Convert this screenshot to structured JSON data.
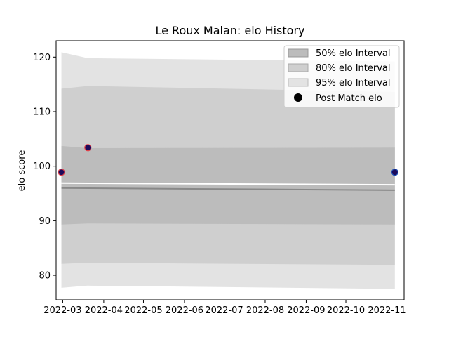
{
  "chart_data": {
    "type": "area",
    "title": "Le Roux Malan: elo History",
    "xlabel": "",
    "ylabel": "elo score",
    "x_ticks": [
      "2022-03",
      "2022-04",
      "2022-05",
      "2022-06",
      "2022-07",
      "2022-08",
      "2022-09",
      "2022-10",
      "2022-11"
    ],
    "x_tick_days": [
      0,
      31,
      61,
      92,
      122,
      153,
      184,
      214,
      245
    ],
    "x_range_days": [
      -5,
      258
    ],
    "ylim": [
      75.5,
      123
    ],
    "y_ticks": [
      80,
      90,
      100,
      110,
      120
    ],
    "legend_position": "top-right",
    "band_days": [
      -1,
      19,
      251
    ],
    "bands": [
      {
        "name": "95% elo Interval",
        "color": "#e3e3e3",
        "upper": [
          120.9,
          119.8,
          119.2
        ],
        "lower": [
          77.7,
          78.1,
          77.5
        ]
      },
      {
        "name": "80% elo Interval",
        "color": "#cfcfcf",
        "upper": [
          114.2,
          114.7,
          113.6
        ],
        "lower": [
          82.1,
          82.3,
          81.9
        ]
      },
      {
        "name": "50% elo Interval",
        "color": "#bcbcbc",
        "upper": [
          103.7,
          103.3,
          103.4
        ],
        "lower": [
          89.3,
          89.5,
          89.3
        ]
      }
    ],
    "mean_line": {
      "days": [
        -1,
        251
      ],
      "values": [
        96.0,
        95.6
      ],
      "color": "#888888"
    },
    "reference_line": {
      "days": [
        -1,
        251
      ],
      "values": [
        96.9,
        96.6
      ],
      "color": "#ffffff"
    },
    "points": {
      "name": "Post Match elo",
      "days": [
        -1,
        19,
        251
      ],
      "values": [
        98.9,
        103.4,
        98.9
      ],
      "edge_colors": [
        "#e0414a",
        "#e0414a",
        "#1f4fb4"
      ],
      "fill_color": "#1c0a5c"
    }
  }
}
